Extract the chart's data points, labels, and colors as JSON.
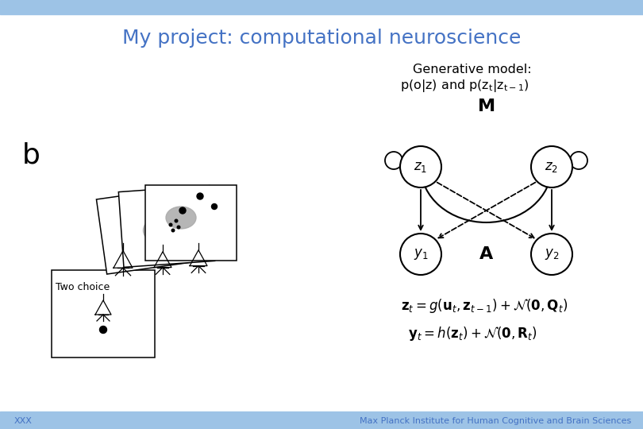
{
  "title": "My project: computational neuroscience",
  "title_color": "#4472C4",
  "title_fontsize": 18,
  "header_bar_color": "#9DC3E6",
  "footer_bar_color": "#9DC3E6",
  "bg_color": "#FFFFFF",
  "footer_left": "XXX",
  "footer_right": "Max Planck Institute for Human Cognitive and Brain Sciences",
  "footer_color": "#4472C4",
  "footer_fontsize": 8,
  "gen_model_title": "Generative model:",
  "node_color": "white",
  "node_edge_color": "black",
  "label_A": "A",
  "label_M": "M",
  "eq1": "$\\mathbf{z}_t = g(\\mathbf{u}_t, \\mathbf{z}_{t-1}) + \\mathcal{N}(\\mathbf{0}, \\mathbf{Q}_t)$",
  "eq2": "$\\mathbf{y}_t = h(\\mathbf{z}_t) + \\mathcal{N}(\\mathbf{0}, \\mathbf{R}_t)$"
}
